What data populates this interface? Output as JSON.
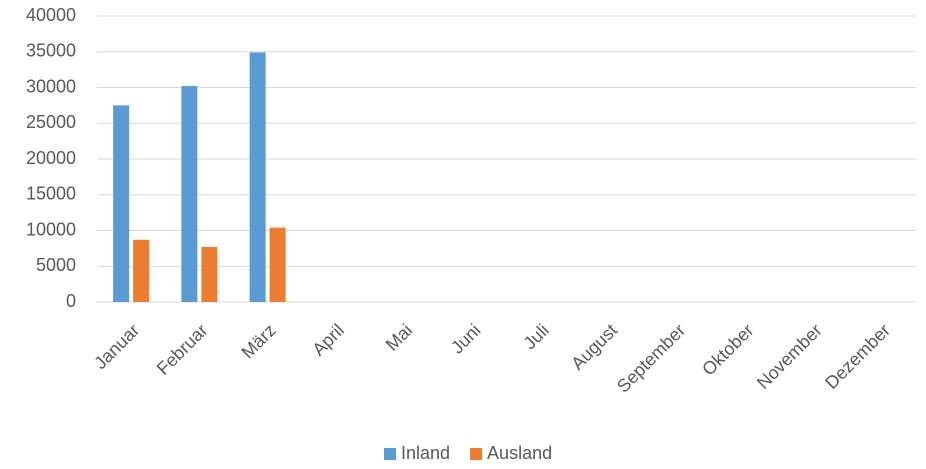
{
  "chart_data": {
    "type": "bar",
    "categories": [
      "Januar",
      "Februar",
      "März",
      "April",
      "Mai",
      "Juni",
      "Juli",
      "August",
      "September",
      "Oktober",
      "November",
      "Dezember"
    ],
    "series": [
      {
        "name": "Inland",
        "color": "#5b9bd5",
        "values": [
          27500,
          30200,
          34900,
          null,
          null,
          null,
          null,
          null,
          null,
          null,
          null,
          null
        ]
      },
      {
        "name": "Ausland",
        "color": "#ed7d31",
        "values": [
          8700,
          7700,
          10400,
          null,
          null,
          null,
          null,
          null,
          null,
          null,
          null,
          null
        ]
      }
    ],
    "ylim": [
      0,
      40000
    ],
    "yticks": [
      0,
      5000,
      10000,
      15000,
      20000,
      25000,
      30000,
      35000,
      40000
    ],
    "grid": true,
    "legend": "bottom"
  }
}
